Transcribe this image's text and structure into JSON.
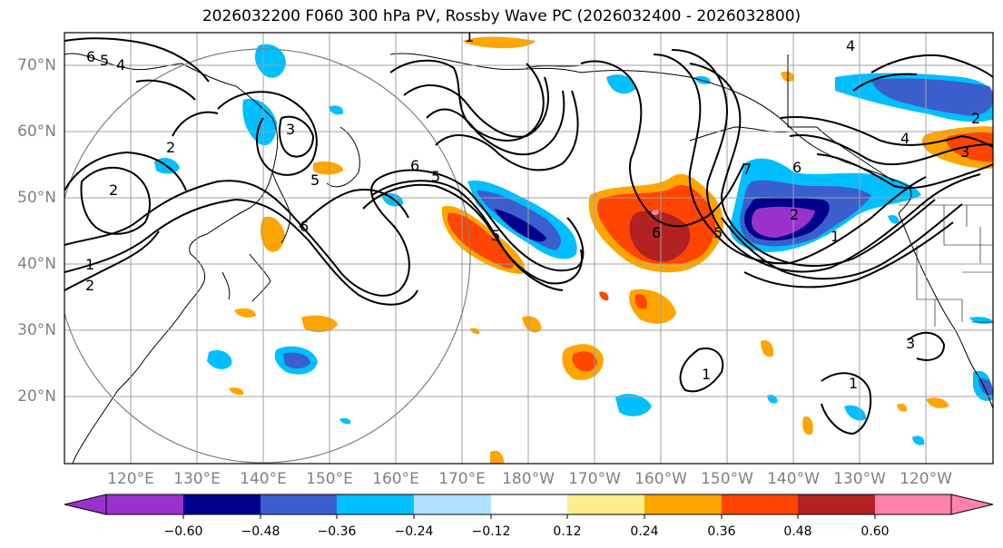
{
  "title": "2026032200 F060 300 hPa PV, Rossby Wave PC (2026032400 - 2026032800)",
  "latitude_labels": [
    "70°N",
    "60°N",
    "50°N",
    "40°N",
    "30°N",
    "20°N"
  ],
  "longitude_labels": [
    "120°E",
    "130°E",
    "140°E",
    "150°E",
    "160°E",
    "170°E",
    "180°W",
    "170°W",
    "160°W",
    "150°W",
    "140°W",
    "130°W",
    "120°W"
  ],
  "colorbar": {
    "colors": [
      "#9932cc",
      "#00008b",
      "#3a5fcd",
      "#00bfff",
      "#b0e2ff",
      "#ffffff",
      "#ffec8b",
      "#ffa500",
      "#ff4500",
      "#b22222",
      "#ff82ab"
    ],
    "under_color": "#9932cc",
    "over_color": "#ff82ab",
    "tick_labels": [
      "−0.60",
      "−0.48",
      "−0.36",
      "−0.24",
      "−0.12",
      "0.12",
      "0.24",
      "0.36",
      "0.48",
      "0.60"
    ]
  },
  "contour_labels": [
    "6",
    "5",
    "4",
    "1",
    "2",
    "2",
    "3",
    "2",
    "5",
    "6",
    "5",
    "6",
    "5",
    "6",
    "7",
    "6",
    "5",
    "4",
    "3",
    "2",
    "1",
    "1",
    "2",
    "1",
    "1",
    "4",
    "3"
  ],
  "colors": {
    "contour": "#000000",
    "grid": "#a0a0a0",
    "coast": "#000000",
    "circle": "#808080",
    "axis_label": "#808080"
  }
}
